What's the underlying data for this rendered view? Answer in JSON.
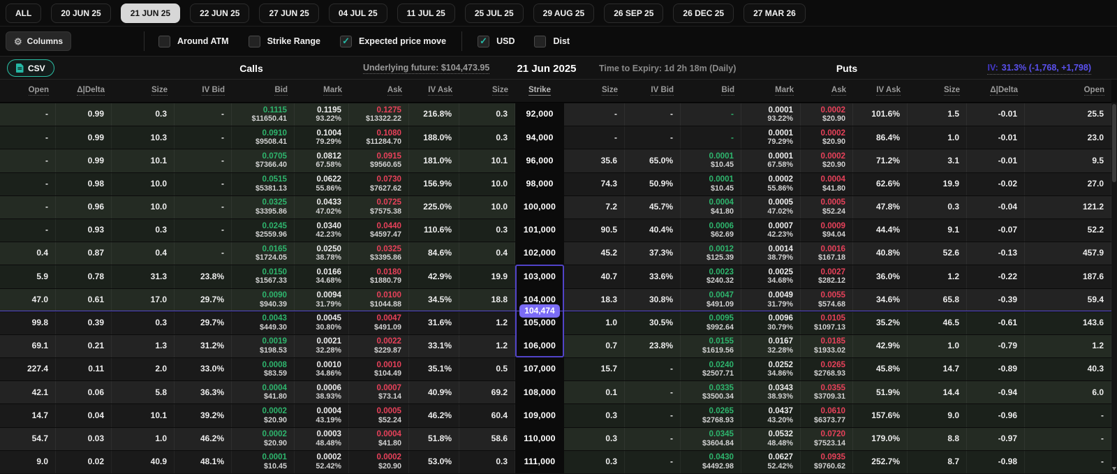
{
  "colors": {
    "accent_teal": "#26b8a5",
    "accent_purple": "#7b6cf6",
    "bid_green": "#2eb56d",
    "ask_red": "#e8415a",
    "iv_blue": "#5b51f0"
  },
  "tabs": [
    {
      "label": "ALL",
      "selected": false
    },
    {
      "label": "20 JUN 25",
      "selected": false
    },
    {
      "label": "21 JUN 25",
      "selected": true
    },
    {
      "label": "22 JUN 25",
      "selected": false
    },
    {
      "label": "27 JUN 25",
      "selected": false
    },
    {
      "label": "04 JUL 25",
      "selected": false
    },
    {
      "label": "11 JUL 25",
      "selected": false
    },
    {
      "label": "25 JUL 25",
      "selected": false
    },
    {
      "label": "29 AUG 25",
      "selected": false
    },
    {
      "label": "26 SEP 25",
      "selected": false
    },
    {
      "label": "26 DEC 25",
      "selected": false
    },
    {
      "label": "27 MAR 26",
      "selected": false
    }
  ],
  "filters": {
    "columns_label": "Columns",
    "groups": [
      [
        {
          "label": "Around ATM",
          "checked": false
        },
        {
          "label": "Strike Range",
          "checked": false
        },
        {
          "label": "Expected price move",
          "checked": true
        }
      ],
      [
        {
          "label": "USD",
          "checked": true
        },
        {
          "label": "Dist",
          "checked": false
        }
      ]
    ]
  },
  "section": {
    "csv_label": "CSV",
    "calls_title": "Calls",
    "underlying_label": "Underlying future:",
    "underlying_value": "$104,473.95",
    "date": "21 Jun 2025",
    "expiry": "Time to Expiry: 1d 2h 18m (Daily)",
    "puts_title": "Puts",
    "iv_label": "IV:",
    "iv_value": "31.3% (-1,768, +1,798)"
  },
  "table": {
    "calls_columns": [
      {
        "key": "open",
        "label": "Open"
      },
      {
        "key": "delta",
        "label": "Δ|Delta"
      },
      {
        "key": "size",
        "label": "Size"
      },
      {
        "key": "iv_bid",
        "label": "IV Bid"
      },
      {
        "key": "bid",
        "label": "Bid",
        "color": "green"
      },
      {
        "key": "mark",
        "label": "Mark"
      },
      {
        "key": "ask",
        "label": "Ask",
        "color": "red"
      },
      {
        "key": "iv_ask",
        "label": "IV Ask"
      },
      {
        "key": "size2",
        "label": "Size"
      }
    ],
    "strike_label": "Strike",
    "puts_columns": [
      {
        "key": "size",
        "label": "Size"
      },
      {
        "key": "iv_bid",
        "label": "IV Bid"
      },
      {
        "key": "bid",
        "label": "Bid",
        "color": "green"
      },
      {
        "key": "mark",
        "label": "Mark"
      },
      {
        "key": "ask",
        "label": "Ask",
        "color": "red"
      },
      {
        "key": "iv_ask",
        "label": "IV Ask"
      },
      {
        "key": "size2",
        "label": "Size"
      },
      {
        "key": "delta",
        "label": "Δ|Delta"
      },
      {
        "key": "open",
        "label": "Open"
      }
    ],
    "itm_call_last_index": 8,
    "itm_put_first_index": 9,
    "price_marker": {
      "value": "104,474",
      "boundary_row_index": 9,
      "range_start_index": 7,
      "range_end_index": 11
    },
    "rows": [
      {
        "strike": "92,000",
        "call": {
          "open": "-",
          "delta": "0.99",
          "size": "0.3",
          "iv_bid": "-",
          "bid": [
            "0.1115",
            "$11650.41"
          ],
          "mark": [
            "0.1195",
            "93.22%"
          ],
          "ask": [
            "0.1275",
            "$13322.22"
          ],
          "iv_ask": "216.8%",
          "size2": "0.3"
        },
        "put": {
          "size": "-",
          "iv_bid": "-",
          "bid": "-",
          "mark": [
            "0.0001",
            "93.22%"
          ],
          "ask": [
            "0.0002",
            "$20.90"
          ],
          "iv_ask": "101.6%",
          "size2": "1.5",
          "delta": "-0.01",
          "open": "25.5"
        }
      },
      {
        "strike": "94,000",
        "call": {
          "open": "-",
          "delta": "0.99",
          "size": "10.3",
          "iv_bid": "-",
          "bid": [
            "0.0910",
            "$9508.41"
          ],
          "mark": [
            "0.1004",
            "79.29%"
          ],
          "ask": [
            "0.1080",
            "$11284.70"
          ],
          "iv_ask": "188.0%",
          "size2": "0.3"
        },
        "put": {
          "size": "-",
          "iv_bid": "-",
          "bid": "-",
          "mark": [
            "0.0001",
            "79.29%"
          ],
          "ask": [
            "0.0002",
            "$20.90"
          ],
          "iv_ask": "86.4%",
          "size2": "1.0",
          "delta": "-0.01",
          "open": "23.0"
        }
      },
      {
        "strike": "96,000",
        "call": {
          "open": "-",
          "delta": "0.99",
          "size": "10.1",
          "iv_bid": "-",
          "bid": [
            "0.0705",
            "$7366.40"
          ],
          "mark": [
            "0.0812",
            "67.58%"
          ],
          "ask": [
            "0.0915",
            "$9560.65"
          ],
          "iv_ask": "181.0%",
          "size2": "10.1"
        },
        "put": {
          "size": "35.6",
          "iv_bid": "65.0%",
          "bid": [
            "0.0001",
            "$10.45"
          ],
          "mark": [
            "0.0001",
            "67.58%"
          ],
          "ask": [
            "0.0002",
            "$20.90"
          ],
          "iv_ask": "71.2%",
          "size2": "3.1",
          "delta": "-0.01",
          "open": "9.5"
        }
      },
      {
        "strike": "98,000",
        "call": {
          "open": "-",
          "delta": "0.98",
          "size": "10.0",
          "iv_bid": "-",
          "bid": [
            "0.0515",
            "$5381.13"
          ],
          "mark": [
            "0.0622",
            "55.86%"
          ],
          "ask": [
            "0.0730",
            "$7627.62"
          ],
          "iv_ask": "156.9%",
          "size2": "10.0"
        },
        "put": {
          "size": "74.3",
          "iv_bid": "50.9%",
          "bid": [
            "0.0001",
            "$10.45"
          ],
          "mark": [
            "0.0002",
            "55.86%"
          ],
          "ask": [
            "0.0004",
            "$41.80"
          ],
          "iv_ask": "62.6%",
          "size2": "19.9",
          "delta": "-0.02",
          "open": "27.0"
        }
      },
      {
        "strike": "100,000",
        "call": {
          "open": "-",
          "delta": "0.96",
          "size": "10.0",
          "iv_bid": "-",
          "bid": [
            "0.0325",
            "$3395.86"
          ],
          "mark": [
            "0.0433",
            "47.02%"
          ],
          "ask": [
            "0.0725",
            "$7575.38"
          ],
          "iv_ask": "225.0%",
          "size2": "10.0"
        },
        "put": {
          "size": "7.2",
          "iv_bid": "45.7%",
          "bid": [
            "0.0004",
            "$41.80"
          ],
          "mark": [
            "0.0005",
            "47.02%"
          ],
          "ask": [
            "0.0005",
            "$52.24"
          ],
          "iv_ask": "47.8%",
          "size2": "0.3",
          "delta": "-0.04",
          "open": "121.2"
        }
      },
      {
        "strike": "101,000",
        "call": {
          "open": "-",
          "delta": "0.93",
          "size": "0.3",
          "iv_bid": "-",
          "bid": [
            "0.0245",
            "$2559.96"
          ],
          "mark": [
            "0.0340",
            "42.23%"
          ],
          "ask": [
            "0.0440",
            "$4597.47"
          ],
          "iv_ask": "110.6%",
          "size2": "0.3"
        },
        "put": {
          "size": "90.5",
          "iv_bid": "40.4%",
          "bid": [
            "0.0006",
            "$62.69"
          ],
          "mark": [
            "0.0007",
            "42.23%"
          ],
          "ask": [
            "0.0009",
            "$94.04"
          ],
          "iv_ask": "44.4%",
          "size2": "9.1",
          "delta": "-0.07",
          "open": "52.2"
        }
      },
      {
        "strike": "102,000",
        "call": {
          "open": "0.4",
          "delta": "0.87",
          "size": "0.4",
          "iv_bid": "-",
          "bid": [
            "0.0165",
            "$1724.05"
          ],
          "mark": [
            "0.0250",
            "38.78%"
          ],
          "ask": [
            "0.0325",
            "$3395.86"
          ],
          "iv_ask": "84.6%",
          "size2": "0.4"
        },
        "put": {
          "size": "45.2",
          "iv_bid": "37.3%",
          "bid": [
            "0.0012",
            "$125.39"
          ],
          "mark": [
            "0.0014",
            "38.79%"
          ],
          "ask": [
            "0.0016",
            "$167.18"
          ],
          "iv_ask": "40.8%",
          "size2": "52.6",
          "delta": "-0.13",
          "open": "457.9"
        }
      },
      {
        "strike": "103,000",
        "call": {
          "open": "5.9",
          "delta": "0.78",
          "size": "31.3",
          "iv_bid": "23.8%",
          "bid": [
            "0.0150",
            "$1567.33"
          ],
          "mark": [
            "0.0166",
            "34.68%"
          ],
          "ask": [
            "0.0180",
            "$1880.79"
          ],
          "iv_ask": "42.9%",
          "size2": "19.9"
        },
        "put": {
          "size": "40.7",
          "iv_bid": "33.6%",
          "bid": [
            "0.0023",
            "$240.32"
          ],
          "mark": [
            "0.0025",
            "34.68%"
          ],
          "ask": [
            "0.0027",
            "$282.12"
          ],
          "iv_ask": "36.0%",
          "size2": "1.2",
          "delta": "-0.22",
          "open": "187.6"
        }
      },
      {
        "strike": "104,000",
        "call": {
          "open": "47.0",
          "delta": "0.61",
          "size": "17.0",
          "iv_bid": "29.7%",
          "bid": [
            "0.0090",
            "$940.39"
          ],
          "mark": [
            "0.0094",
            "31.79%"
          ],
          "ask": [
            "0.0100",
            "$1044.88"
          ],
          "iv_ask": "34.5%",
          "size2": "18.8"
        },
        "put": {
          "size": "18.3",
          "iv_bid": "30.8%",
          "bid": [
            "0.0047",
            "$491.09"
          ],
          "mark": [
            "0.0049",
            "31.79%"
          ],
          "ask": [
            "0.0055",
            "$574.68"
          ],
          "iv_ask": "34.6%",
          "size2": "65.8",
          "delta": "-0.39",
          "open": "59.4"
        }
      },
      {
        "strike": "105,000",
        "call": {
          "open": "99.8",
          "delta": "0.39",
          "size": "0.3",
          "iv_bid": "29.7%",
          "bid": [
            "0.0043",
            "$449.30"
          ],
          "mark": [
            "0.0045",
            "30.80%"
          ],
          "ask": [
            "0.0047",
            "$491.09"
          ],
          "iv_ask": "31.6%",
          "size2": "1.2"
        },
        "put": {
          "size": "1.0",
          "iv_bid": "30.5%",
          "bid": [
            "0.0095",
            "$992.64"
          ],
          "mark": [
            "0.0096",
            "30.79%"
          ],
          "ask": [
            "0.0105",
            "$1097.13"
          ],
          "iv_ask": "35.2%",
          "size2": "46.5",
          "delta": "-0.61",
          "open": "143.6"
        }
      },
      {
        "strike": "106,000",
        "call": {
          "open": "69.1",
          "delta": "0.21",
          "size": "1.3",
          "iv_bid": "31.2%",
          "bid": [
            "0.0019",
            "$198.53"
          ],
          "mark": [
            "0.0021",
            "32.28%"
          ],
          "ask": [
            "0.0022",
            "$229.87"
          ],
          "iv_ask": "33.1%",
          "size2": "1.2"
        },
        "put": {
          "size": "0.7",
          "iv_bid": "23.8%",
          "bid": [
            "0.0155",
            "$1619.56"
          ],
          "mark": [
            "0.0167",
            "32.28%"
          ],
          "ask": [
            "0.0185",
            "$1933.02"
          ],
          "iv_ask": "42.9%",
          "size2": "1.0",
          "delta": "-0.79",
          "open": "1.2"
        }
      },
      {
        "strike": "107,000",
        "call": {
          "open": "227.4",
          "delta": "0.11",
          "size": "2.0",
          "iv_bid": "33.0%",
          "bid": [
            "0.0008",
            "$83.59"
          ],
          "mark": [
            "0.0010",
            "34.86%"
          ],
          "ask": [
            "0.0010",
            "$104.49"
          ],
          "iv_ask": "35.1%",
          "size2": "0.5"
        },
        "put": {
          "size": "15.7",
          "iv_bid": "-",
          "bid": [
            "0.0240",
            "$2507.71"
          ],
          "mark": [
            "0.0252",
            "34.86%"
          ],
          "ask": [
            "0.0265",
            "$2768.93"
          ],
          "iv_ask": "45.8%",
          "size2": "14.7",
          "delta": "-0.89",
          "open": "40.3"
        }
      },
      {
        "strike": "108,000",
        "call": {
          "open": "42.1",
          "delta": "0.06",
          "size": "5.8",
          "iv_bid": "36.3%",
          "bid": [
            "0.0004",
            "$41.80"
          ],
          "mark": [
            "0.0006",
            "38.93%"
          ],
          "ask": [
            "0.0007",
            "$73.14"
          ],
          "iv_ask": "40.9%",
          "size2": "69.2"
        },
        "put": {
          "size": "0.1",
          "iv_bid": "-",
          "bid": [
            "0.0335",
            "$3500.34"
          ],
          "mark": [
            "0.0343",
            "38.93%"
          ],
          "ask": [
            "0.0355",
            "$3709.31"
          ],
          "iv_ask": "51.9%",
          "size2": "14.4",
          "delta": "-0.94",
          "open": "6.0"
        }
      },
      {
        "strike": "109,000",
        "call": {
          "open": "14.7",
          "delta": "0.04",
          "size": "10.1",
          "iv_bid": "39.2%",
          "bid": [
            "0.0002",
            "$20.90"
          ],
          "mark": [
            "0.0004",
            "43.19%"
          ],
          "ask": [
            "0.0005",
            "$52.24"
          ],
          "iv_ask": "46.2%",
          "size2": "60.4"
        },
        "put": {
          "size": "0.3",
          "iv_bid": "-",
          "bid": [
            "0.0265",
            "$2768.93"
          ],
          "mark": [
            "0.0437",
            "43.20%"
          ],
          "ask": [
            "0.0610",
            "$6373.77"
          ],
          "iv_ask": "157.6%",
          "size2": "9.0",
          "delta": "-0.96",
          "open": "-"
        }
      },
      {
        "strike": "110,000",
        "call": {
          "open": "54.7",
          "delta": "0.03",
          "size": "1.0",
          "iv_bid": "46.2%",
          "bid": [
            "0.0002",
            "$20.90"
          ],
          "mark": [
            "0.0003",
            "48.48%"
          ],
          "ask": [
            "0.0004",
            "$41.80"
          ],
          "iv_ask": "51.8%",
          "size2": "58.6"
        },
        "put": {
          "size": "0.3",
          "iv_bid": "-",
          "bid": [
            "0.0345",
            "$3604.84"
          ],
          "mark": [
            "0.0532",
            "48.48%"
          ],
          "ask": [
            "0.0720",
            "$7523.14"
          ],
          "iv_ask": "179.0%",
          "size2": "8.8",
          "delta": "-0.97",
          "open": "-"
        }
      },
      {
        "strike": "111,000",
        "call": {
          "open": "9.0",
          "delta": "0.02",
          "size": "40.9",
          "iv_bid": "48.1%",
          "bid": [
            "0.0001",
            "$10.45"
          ],
          "mark": [
            "0.0002",
            "52.42%"
          ],
          "ask": [
            "0.0002",
            "$20.90"
          ],
          "iv_ask": "53.0%",
          "size2": "0.3"
        },
        "put": {
          "size": "0.3",
          "iv_bid": "-",
          "bid": [
            "0.0430",
            "$4492.98"
          ],
          "mark": [
            "0.0627",
            "52.42%"
          ],
          "ask": [
            "0.0935",
            "$9760.62"
          ],
          "iv_ask": "252.7%",
          "size2": "8.7",
          "delta": "-0.98",
          "open": "-"
        }
      }
    ]
  }
}
